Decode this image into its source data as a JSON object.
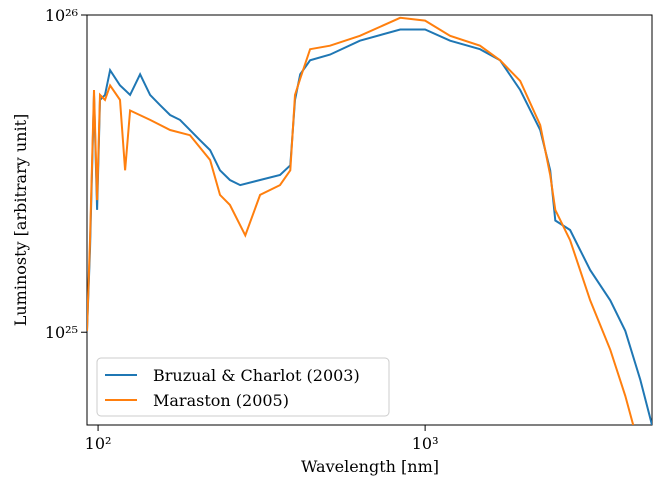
{
  "chart_data": {
    "type": "line",
    "xlabel": "Wavelength [nm]",
    "ylabel": "Luminosty [arbitrary unit]",
    "xscale": "log",
    "yscale": "log",
    "xlim": [
      92.5,
      4940
    ],
    "ylim": [
      5.1e+24,
      1e+26
    ],
    "xticks": [
      {
        "value": 100,
        "label": "10²"
      },
      {
        "value": 1000,
        "label": "10³"
      }
    ],
    "yticks": [
      {
        "value": 1e+25,
        "label": "10²⁵"
      },
      {
        "value": 1e+26,
        "label": "10²⁶"
      }
    ],
    "legend": "lower left",
    "series": [
      {
        "name": "Bruzual & Charlot (2003)",
        "color": "#1f77b4",
        "x": [
          92.5,
          94.5,
          97.2,
          99.3,
          101.4,
          105,
          108.8,
          116.7,
          125.3,
          134.4,
          144.2,
          154.7,
          166,
          178,
          205,
          220,
          236,
          253,
          272,
          313,
          360,
          387,
          400,
          415,
          445,
          512,
          632,
          839,
          1000,
          1192,
          1472,
          1695,
          1953,
          2249,
          2412,
          2500,
          2775,
          3197,
          3683,
          4093,
          4545,
          4940
        ],
        "values": [
          1.01e+25,
          1.82e+25,
          5.6e+25,
          2.43e+25,
          5.4e+25,
          5.6e+25,
          6.7e+25,
          6e+25,
          5.6e+25,
          6.5e+25,
          5.6e+25,
          5.2e+25,
          4.84e+25,
          4.67e+25,
          4.03e+25,
          3.75e+25,
          3.24e+25,
          3.02e+25,
          2.91e+25,
          3.02e+25,
          3.13e+25,
          3.36e+25,
          5.4e+25,
          6.5e+25,
          7.2e+25,
          7.5e+25,
          8.3e+25,
          9e+25,
          9e+25,
          8.3e+25,
          7.8e+25,
          7.2e+25,
          5.8e+25,
          4.34e+25,
          3.24e+25,
          2.25e+25,
          2.1e+25,
          1.57e+25,
          1.26e+25,
          1.01e+25,
          7.1e+24,
          5.1e+24
        ]
      },
      {
        "name": "Maraston (2005)",
        "color": "#ff7f0e",
        "x": [
          92.5,
          94.5,
          97.2,
          99.3,
          101.4,
          105,
          108.8,
          116.7,
          121,
          125.3,
          144.2,
          166,
          191,
          220,
          236,
          253,
          282,
          313,
          360,
          387,
          400,
          415,
          445,
          512,
          632,
          839,
          1000,
          1192,
          1472,
          1695,
          1953,
          2249,
          2412,
          2500,
          2775,
          3197,
          3683,
          4093,
          4329
        ],
        "values": [
          1.01e+25,
          1.95e+25,
          5.8e+25,
          2.61e+25,
          5.6e+25,
          5.4e+25,
          6e+25,
          5.4e+25,
          3.24e+25,
          5e+25,
          4.67e+25,
          4.34e+25,
          4.18e+25,
          3.49e+25,
          2.71e+25,
          2.52e+25,
          2.02e+25,
          2.71e+25,
          2.91e+25,
          3.24e+25,
          5.6e+25,
          6.3e+25,
          7.8e+25,
          8e+25,
          8.6e+25,
          9.8e+25,
          9.6e+25,
          8.6e+25,
          8e+25,
          7.2e+25,
          6.2e+25,
          4.5e+25,
          3.13e+25,
          2.43e+25,
          1.95e+25,
          1.26e+25,
          8.8e+24,
          6.3e+24,
          5.1e+24
        ]
      }
    ]
  }
}
